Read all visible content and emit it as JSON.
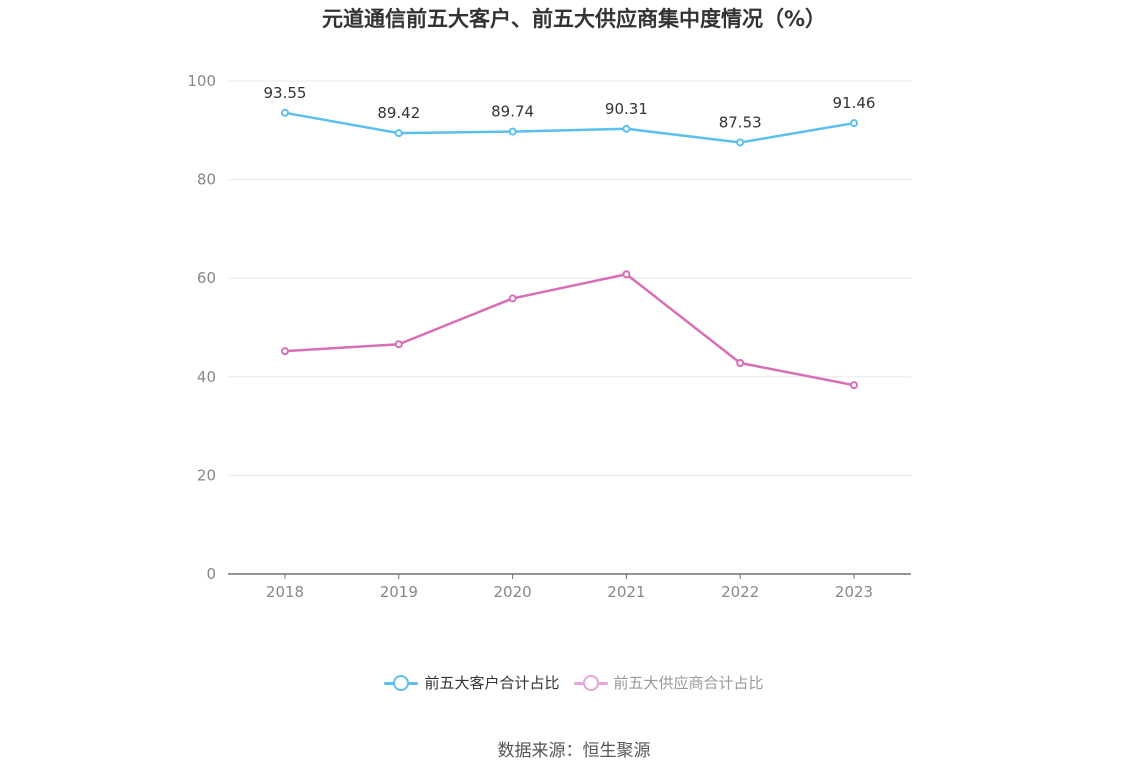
{
  "title": "元道通信前五大客户、前五大供应商集中度情况（%）",
  "source_text": "数据来源：恒生聚源",
  "colors": {
    "customer": "#5bc0f0",
    "supplier": "#d86eb5",
    "supplier_legend": "#e6a6d2",
    "grid": "#e5e8ee",
    "axis": "#6e7079",
    "tick_label": "#888888",
    "data_label": "#333333"
  },
  "chart_data": {
    "type": "line",
    "title": "元道通信前五大客户、前五大供应商集中度情况（%）",
    "x": [
      "2018",
      "2019",
      "2020",
      "2021",
      "2022",
      "2023"
    ],
    "ylim": [
      0,
      100
    ],
    "y_ticks": [
      0,
      20,
      40,
      60,
      80,
      100
    ],
    "y_tick_labels": [
      "0",
      "20",
      "40",
      "60",
      "80",
      "100"
    ],
    "grid": true,
    "legend_position": "bottom-center",
    "series": [
      {
        "name": "前五大客户合计占比",
        "values": [
          93.55,
          89.42,
          89.74,
          90.31,
          87.53,
          91.46
        ],
        "labels": [
          "93.55",
          "89.42",
          "89.74",
          "90.31",
          "87.53",
          "91.46"
        ],
        "show_labels": true,
        "legend_state": "active"
      },
      {
        "name": "前五大供应商合计占比",
        "values": [
          45.2,
          46.6,
          55.9,
          60.8,
          42.8,
          38.3
        ],
        "show_labels": false,
        "legend_state": "inactive"
      }
    ]
  }
}
